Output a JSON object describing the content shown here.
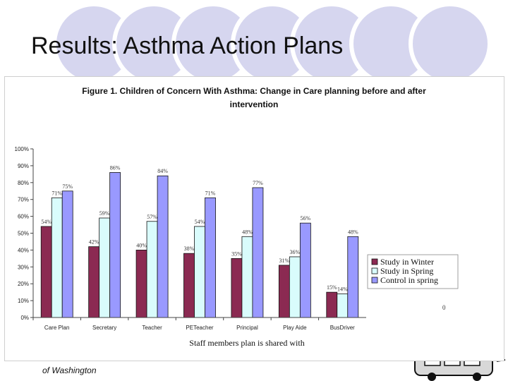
{
  "slide": {
    "title": "Results: Asthma Action Plans",
    "logo_org": "of Washington"
  },
  "colors": {
    "circle_fill": "#d6d6ef",
    "circle_stroke": "#ffffff"
  },
  "chart_data": {
    "type": "bar",
    "title_line1": "Figure 1. Children of Concern With Asthma: Change in Care planning before and after",
    "title_line2": "intervention",
    "xlabel": "Staff members plan is shared with",
    "ylabel": "",
    "ylim": [
      0,
      100
    ],
    "y_ticks": [
      "0%",
      "10%",
      "20%",
      "30%",
      "40%",
      "50%",
      "60%",
      "70%",
      "80%",
      "90%",
      "100%"
    ],
    "categories": [
      "Care Plan",
      "Secretary",
      "Teacher",
      "PETeacher",
      "Principal",
      "Play Aide",
      "BusDriver"
    ],
    "series": [
      {
        "name": "Study in Winter",
        "color": "#8b2a52",
        "values": [
          54,
          42,
          40,
          38,
          35,
          31,
          15
        ],
        "labels": [
          "54%",
          "42%",
          "40%",
          "38%",
          "35%",
          "31%",
          "15%"
        ]
      },
      {
        "name": "Study in Spring",
        "color": "#d9fcfc",
        "values": [
          71,
          59,
          57,
          54,
          48,
          36,
          14
        ],
        "labels": [
          "71%",
          "59%",
          "57%",
          "54%",
          "48%",
          "36%",
          "14%"
        ]
      },
      {
        "name": "Control in spring",
        "color": "#9999ff",
        "values": [
          75,
          86,
          84,
          71,
          77,
          56,
          48
        ],
        "labels": [
          "75%",
          "86%",
          "84%",
          "71%",
          "77%",
          "56%",
          "48%"
        ]
      }
    ],
    "extra_label": "0",
    "grid": false,
    "legend_position": "right"
  }
}
